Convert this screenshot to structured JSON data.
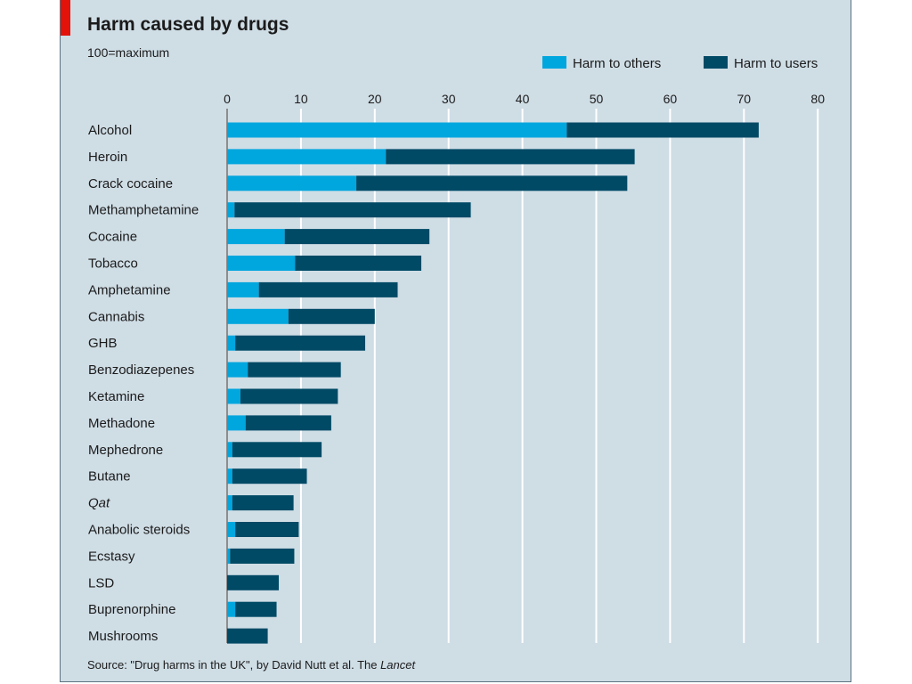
{
  "header": {
    "title": "Harm caused by drugs",
    "subtitle": "100=maximum"
  },
  "footer": {
    "source_prefix": "Source: \"Drug harms in the UK\", by David Nutt et al. The ",
    "source_journal": "Lancet"
  },
  "colors": {
    "harm_to_others": "#00a6de",
    "harm_to_users": "#004a66",
    "background": "#cfdde5",
    "brand_red": "#e3120b"
  },
  "chart_data": {
    "type": "bar",
    "orientation": "horizontal",
    "stacked": true,
    "title": "Harm caused by drugs",
    "subtitle": "100=maximum",
    "xlim": [
      0,
      80
    ],
    "x_ticks": [
      0,
      10,
      20,
      30,
      40,
      50,
      60,
      70,
      80
    ],
    "x_axis_position": "top",
    "grid": true,
    "legend_position": "top-right",
    "categories": [
      "Alcohol",
      "Heroin",
      "Crack cocaine",
      "Methamphetamine",
      "Cocaine",
      "Tobacco",
      "Amphetamine",
      "Cannabis",
      "GHB",
      "Benzodiazepenes",
      "Ketamine",
      "Methadone",
      "Mephedrone",
      "Butane",
      "Qat",
      "Anabolic steroids",
      "Ecstasy",
      "LSD",
      "Buprenorphine",
      "Mushrooms"
    ],
    "italic_categories": [
      "Qat"
    ],
    "series": [
      {
        "name": "Harm to others",
        "values": [
          46,
          21.5,
          17.5,
          1,
          7.8,
          9.2,
          4.3,
          8.3,
          1.1,
          2.8,
          1.8,
          2.5,
          0.7,
          0.7,
          0.7,
          1.1,
          0.4,
          0,
          1.1,
          0
        ]
      },
      {
        "name": "Harm to users",
        "values": [
          26,
          33.7,
          36.7,
          32,
          19.6,
          17.1,
          18.8,
          11.7,
          17.6,
          12.6,
          13.2,
          11.6,
          12.1,
          10.1,
          8.3,
          8.6,
          8.7,
          7,
          5.6,
          5.5
        ]
      }
    ],
    "source": "Source: \"Drug harms in the UK\", by David Nutt et al. The Lancet"
  }
}
